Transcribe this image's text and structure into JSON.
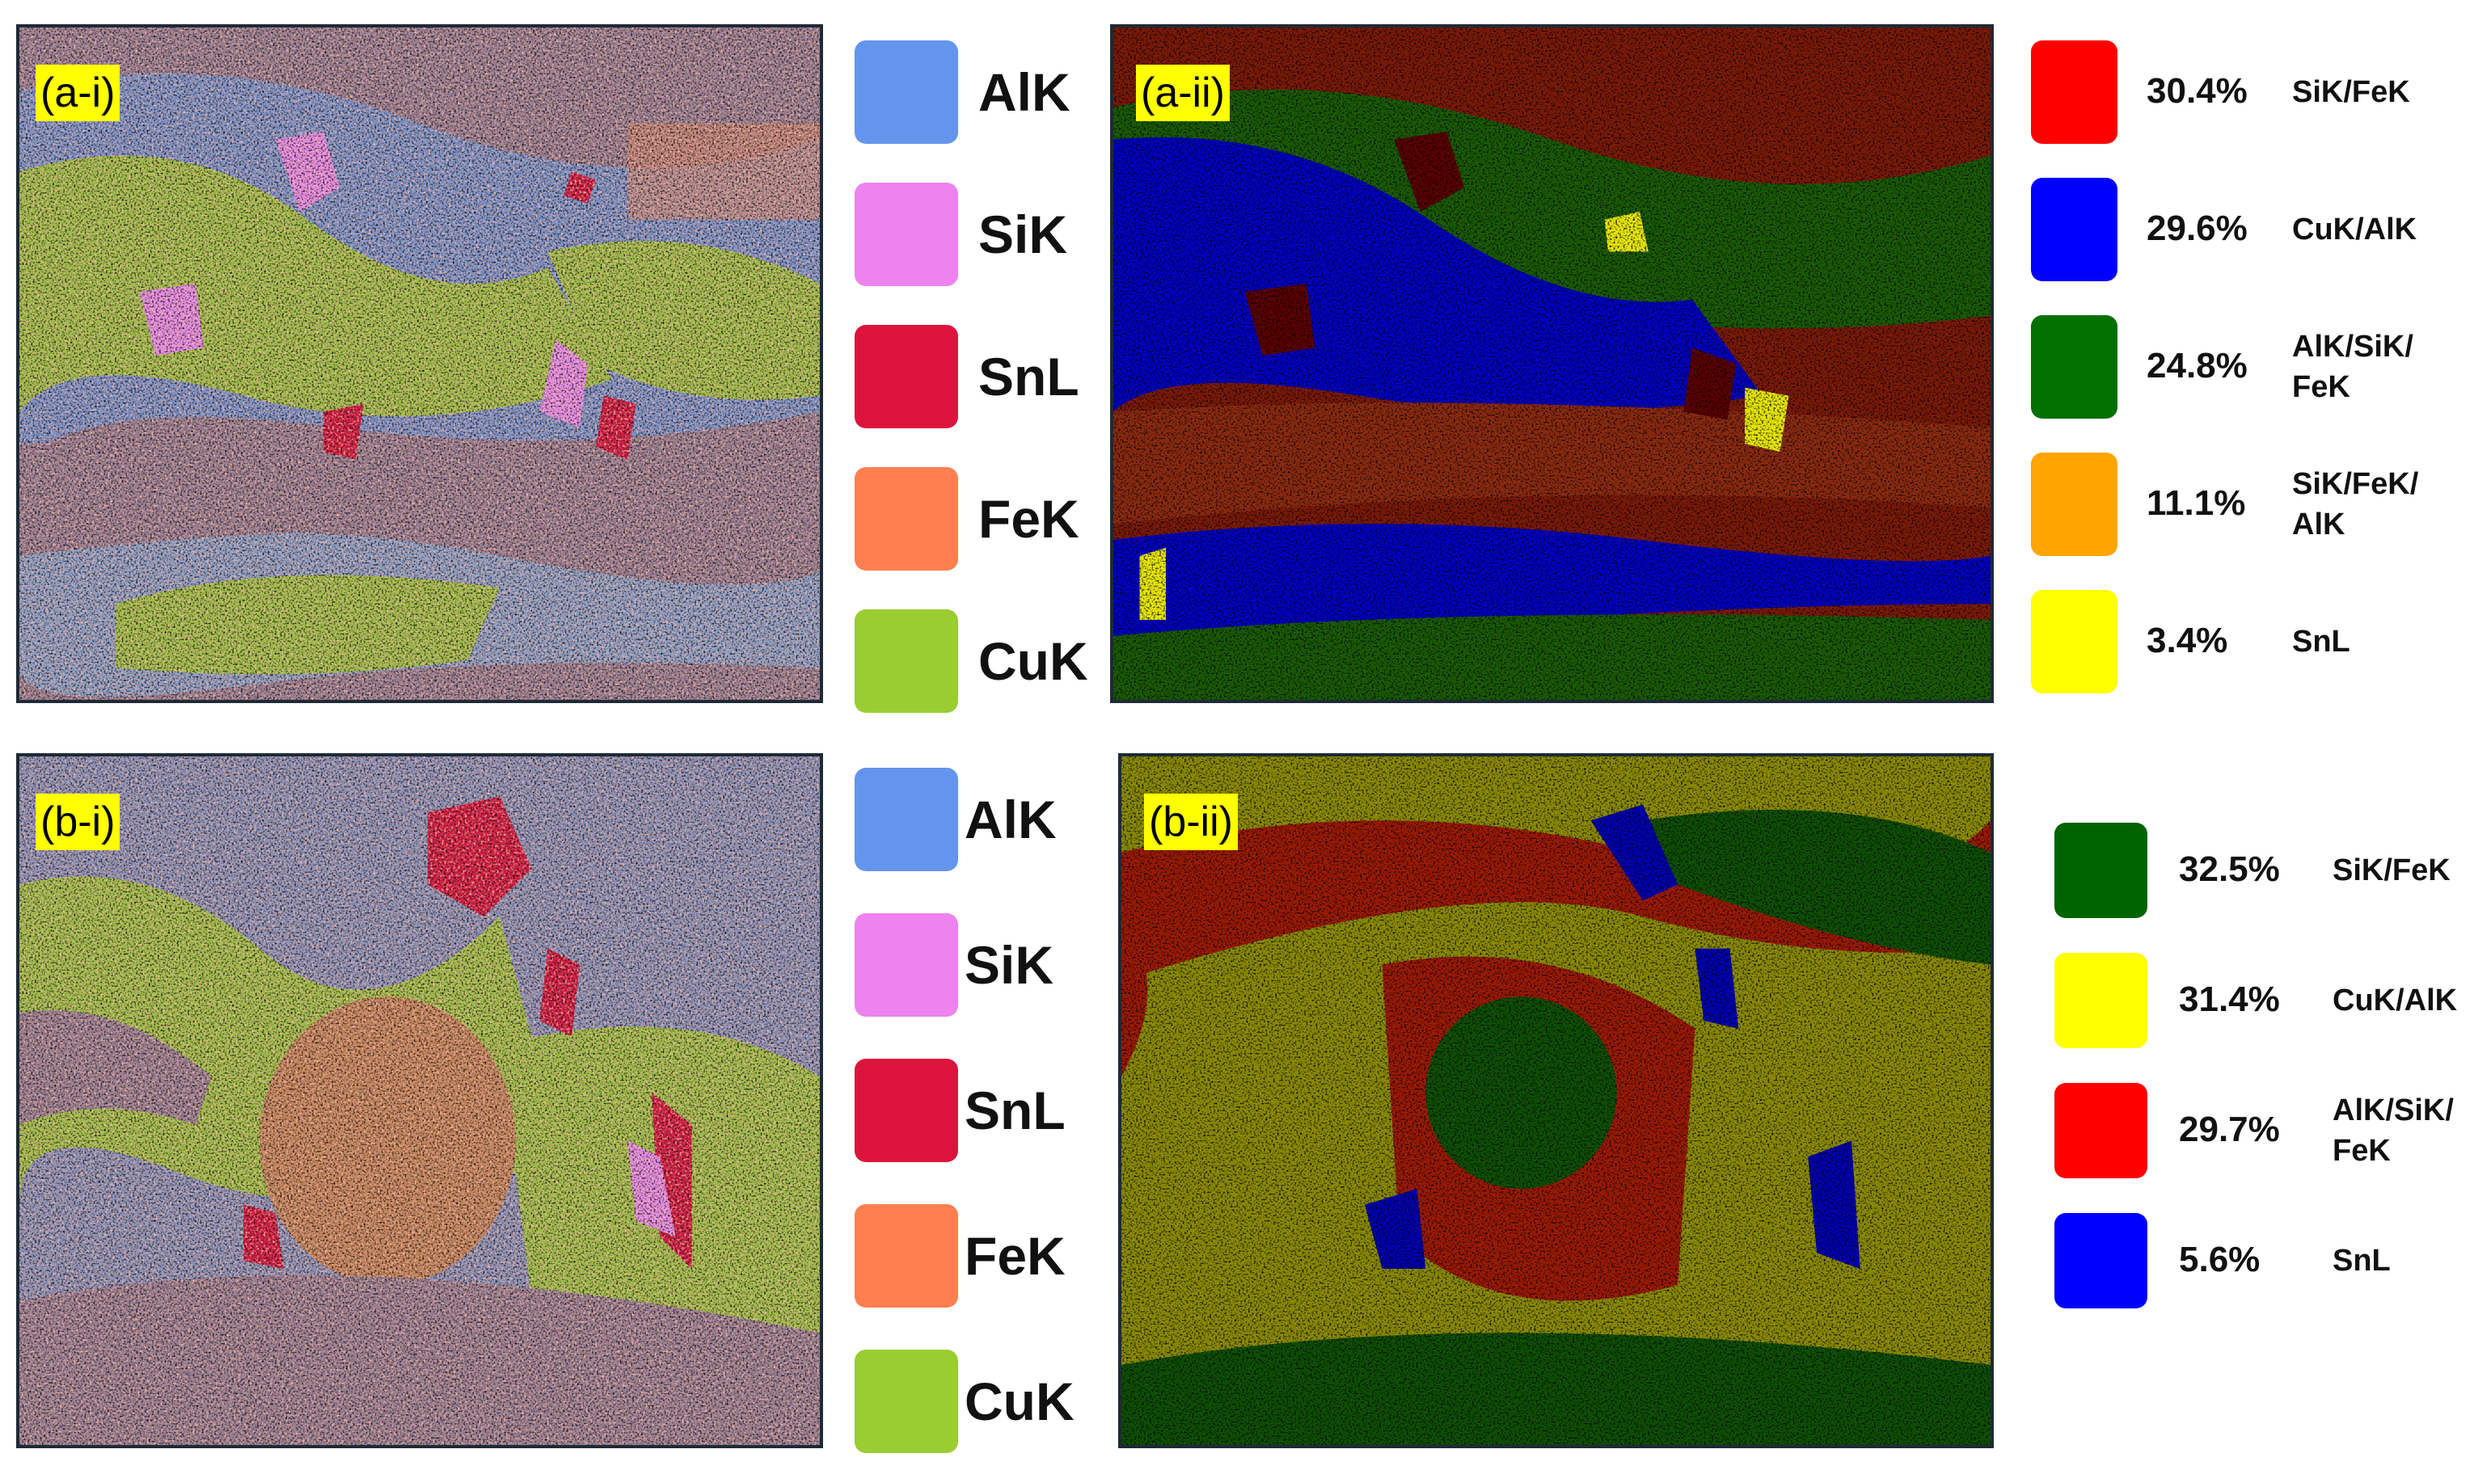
{
  "panels": [
    {
      "label": "(a-i)",
      "legend": [
        {
          "name": "AlK",
          "color": "#6495ed"
        },
        {
          "name": "SiK",
          "color": "#ee82ee"
        },
        {
          "name": "SnL",
          "color": "#dc143c"
        },
        {
          "name": "FeK",
          "color": "#ff7f50"
        },
        {
          "name": "CuK",
          "color": "#9acd32"
        }
      ]
    },
    {
      "label": "(a-ii)",
      "legend": [
        {
          "percent": "30.4%",
          "name": "SiK/FeK",
          "color": "#ff0000"
        },
        {
          "percent": "29.6%",
          "name": "CuK/AlK",
          "color": "#0000ff"
        },
        {
          "percent": "24.8%",
          "name": "AlK/SiK/FeK",
          "color": "#007000"
        },
        {
          "percent": "11.1%",
          "name": "SiK/FeK/AlK",
          "color": "#ffa500"
        },
        {
          "percent": "3.4%",
          "name": "SnL",
          "color": "#ffff00"
        }
      ]
    },
    {
      "label": "(b-i)",
      "legend": [
        {
          "name": "AlK",
          "color": "#6495ed"
        },
        {
          "name": "SiK",
          "color": "#ee82ee"
        },
        {
          "name": "SnL",
          "color": "#dc143c"
        },
        {
          "name": "FeK",
          "color": "#ff7f50"
        },
        {
          "name": "CuK",
          "color": "#9acd32"
        }
      ]
    },
    {
      "label": "(b-ii)",
      "legend": [
        {
          "percent": "32.5%",
          "name": "SiK/FeK",
          "color": "#006400"
        },
        {
          "percent": "31.4%",
          "name": "CuK/AlK",
          "color": "#ffff00"
        },
        {
          "percent": "29.7%",
          "name": "AlK/SiK/FeK",
          "color": "#ff0000"
        },
        {
          "percent": "5.6%",
          "name": "SnL",
          "color": "#0000ff"
        }
      ]
    }
  ]
}
